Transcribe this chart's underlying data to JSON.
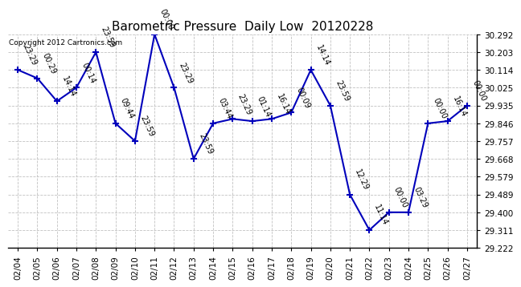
{
  "title": "Barometric Pressure  Daily Low  20120228",
  "copyright": "Copyright 2012 Cartronics.com",
  "dates": [
    "02/04",
    "02/05",
    "02/06",
    "02/07",
    "02/08",
    "02/09",
    "02/10",
    "02/11",
    "02/12",
    "02/13",
    "02/14",
    "02/15",
    "02/16",
    "02/17",
    "02/18",
    "02/19",
    "02/20",
    "02/21",
    "02/22",
    "02/23",
    "02/24",
    "02/25",
    "02/26",
    "02/27"
  ],
  "values": [
    30.114,
    30.072,
    29.957,
    30.025,
    30.203,
    29.846,
    29.757,
    30.292,
    30.025,
    29.668,
    29.846,
    29.868,
    29.857,
    29.868,
    29.9,
    30.114,
    29.935,
    29.489,
    29.311,
    29.4,
    29.4,
    29.846,
    29.857,
    29.935
  ],
  "point_labels": [
    "23:29",
    "00:29",
    "14:14",
    "00:14",
    "23:59",
    "09:44",
    "23:59",
    "00:00",
    "23:29",
    "23:59",
    "03:44",
    "23:29",
    "01:14",
    "16:14",
    "00:09",
    "14:14",
    "23:59",
    "12:29",
    "11:14",
    "00:00",
    "03:29",
    "00:00",
    "16:14",
    "00:00"
  ],
  "line_color": "#0000bb",
  "marker_color": "#0000bb",
  "bg_color": "#ffffff",
  "grid_color": "#bbbbbb",
  "title_fontsize": 11,
  "annotation_fontsize": 7,
  "tick_fontsize": 7.5,
  "ylim_min": 29.222,
  "ylim_max": 30.292,
  "yticks": [
    29.222,
    29.311,
    29.4,
    29.489,
    29.579,
    29.668,
    29.757,
    29.846,
    29.935,
    30.025,
    30.114,
    30.203,
    30.292
  ]
}
